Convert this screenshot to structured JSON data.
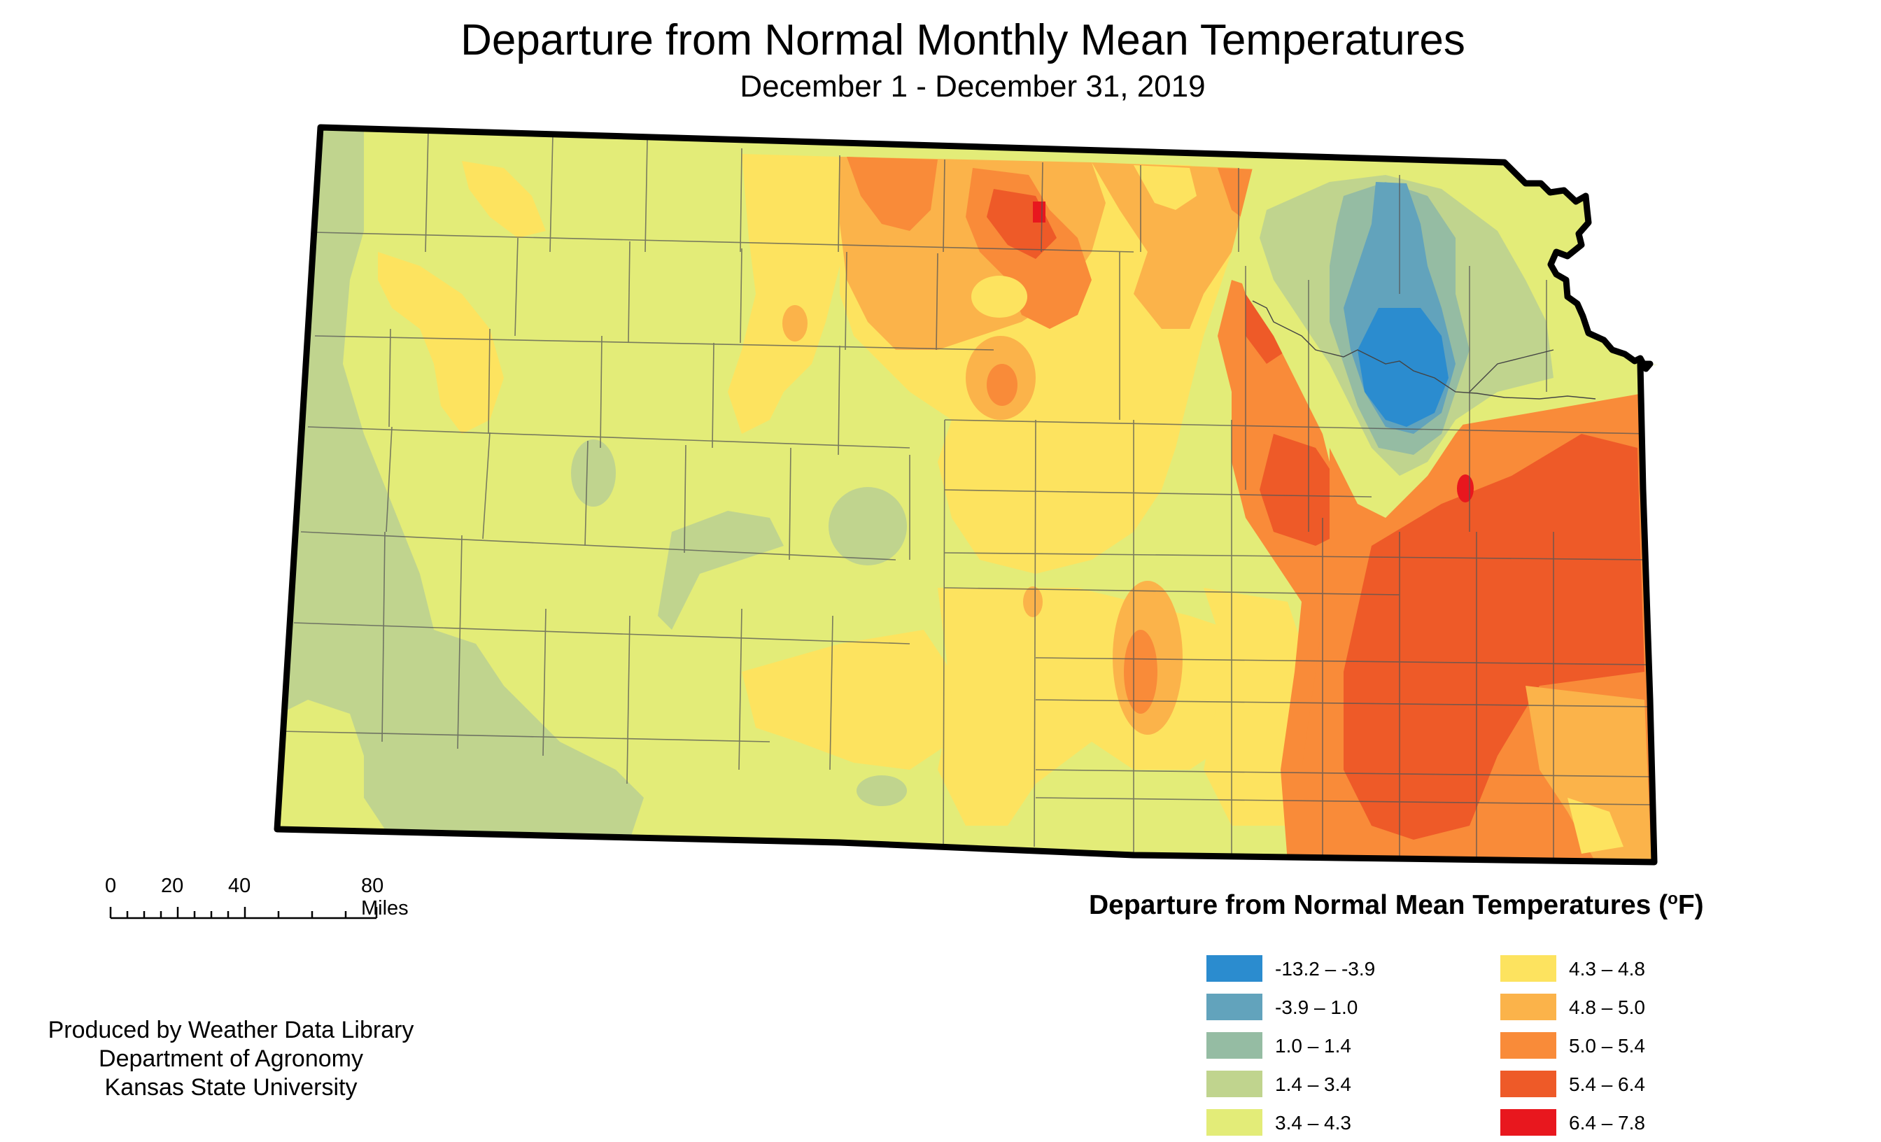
{
  "title": "Departure from Normal Monthly Mean Temperatures",
  "subtitle": "December 1 - December 31, 2019",
  "scale_bar": {
    "labels": [
      "0",
      "20",
      "40",
      "80 Miles"
    ]
  },
  "credits": {
    "line1": "Produced by Weather Data Library",
    "line2": "Department of Agronomy",
    "line3": "Kansas State University"
  },
  "legend": {
    "title_text": "Departure from Normal Mean Temperatures (",
    "title_sup": "o",
    "title_end": "F)",
    "items": [
      {
        "label": "-13.2 – -3.9",
        "color": "#2b8ccf"
      },
      {
        "label": "-3.9 – 1.0",
        "color": "#62a3bc"
      },
      {
        "label": "1.0 – 1.4",
        "color": "#95bca3"
      },
      {
        "label": "1.4 – 3.4",
        "color": "#c0d48e"
      },
      {
        "label": "3.4 – 4.3",
        "color": "#e3ec78"
      },
      {
        "label": "4.3 – 4.8",
        "color": "#fde35f"
      },
      {
        "label": "4.8 – 5.0",
        "color": "#fbb34a"
      },
      {
        "label": "5.0 – 5.4",
        "color": "#f98b39"
      },
      {
        "label": "5.4 – 6.4",
        "color": "#ee5a28"
      },
      {
        "label": "6.4 – 7.8",
        "color": "#e8171e"
      }
    ]
  }
}
